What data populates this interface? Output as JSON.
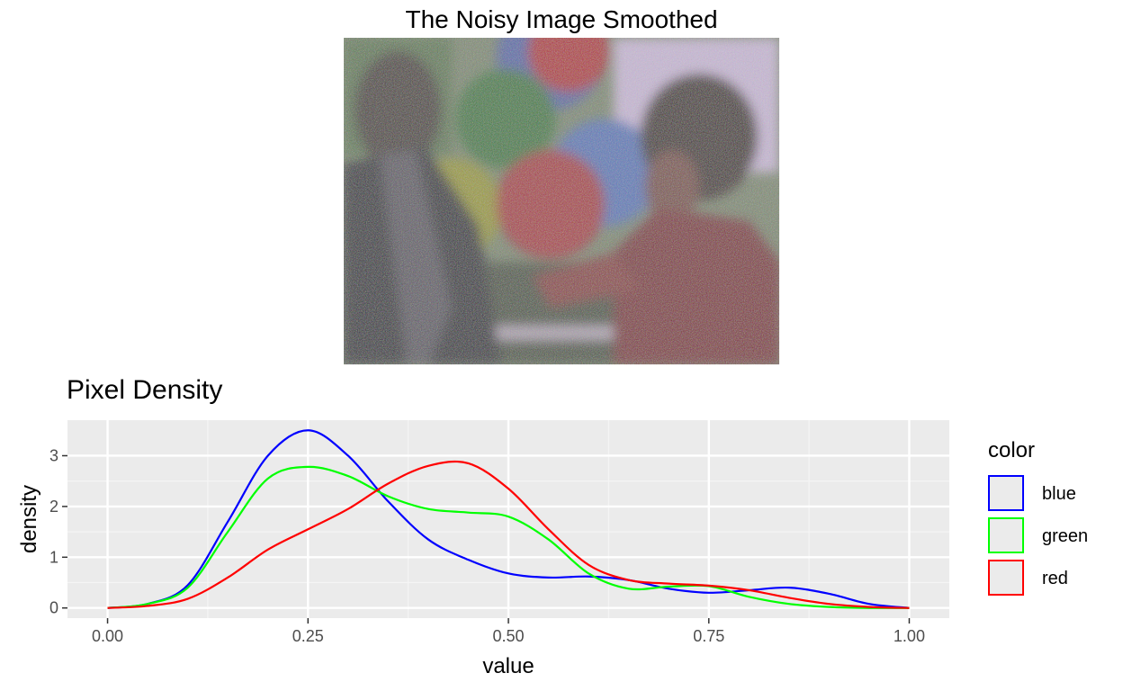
{
  "image_title": "The Noisy Image Smoothed",
  "chart_data": {
    "type": "line",
    "title": "Pixel Density",
    "xlabel": "value",
    "ylabel": "density",
    "xlim": [
      -0.05,
      1.05
    ],
    "ylim": [
      -0.2,
      3.7
    ],
    "grid": true,
    "x_ticks": [
      0,
      0.25,
      0.5,
      0.75,
      1
    ],
    "x_tick_labels": [
      "0.00",
      "0.25",
      "0.50",
      "0.75",
      "1.00"
    ],
    "y_ticks": [
      0,
      1,
      2,
      3
    ],
    "y_tick_labels": [
      "0",
      "1",
      "2",
      "3"
    ],
    "legend": {
      "title": "color",
      "placement": "right"
    },
    "x": [
      0,
      0.05,
      0.1,
      0.15,
      0.2,
      0.25,
      0.3,
      0.35,
      0.4,
      0.45,
      0.5,
      0.55,
      0.6,
      0.65,
      0.7,
      0.75,
      0.8,
      0.85,
      0.9,
      0.95,
      1
    ],
    "series": [
      {
        "name": "blue",
        "color": "#0000ff",
        "values": [
          0,
          0.08,
          0.45,
          1.7,
          3.0,
          3.5,
          3.0,
          2.1,
          1.35,
          0.95,
          0.68,
          0.6,
          0.62,
          0.55,
          0.38,
          0.3,
          0.35,
          0.4,
          0.28,
          0.08,
          0
        ]
      },
      {
        "name": "green",
        "color": "#00ff00",
        "values": [
          0,
          0.08,
          0.4,
          1.5,
          2.55,
          2.78,
          2.6,
          2.2,
          1.95,
          1.88,
          1.8,
          1.35,
          0.68,
          0.38,
          0.42,
          0.43,
          0.22,
          0.08,
          0.02,
          0,
          0
        ]
      },
      {
        "name": "red",
        "color": "#ff0000",
        "values": [
          0,
          0.04,
          0.18,
          0.6,
          1.15,
          1.55,
          1.95,
          2.45,
          2.8,
          2.85,
          2.35,
          1.55,
          0.85,
          0.55,
          0.48,
          0.44,
          0.35,
          0.2,
          0.08,
          0.02,
          0
        ]
      }
    ]
  }
}
